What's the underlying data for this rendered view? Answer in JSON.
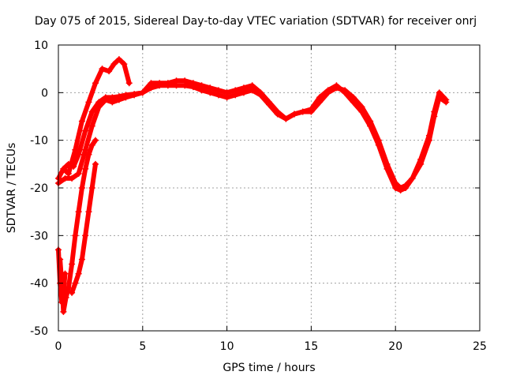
{
  "chart_data": {
    "type": "scatter",
    "title": "Day 075 of 2015, Sidereal Day-to-day VTEC variation (SDTVAR) for receiver onrj",
    "xlabel": "GPS time / hours",
    "ylabel": "SDTVAR / TECUs",
    "xlim": [
      0,
      25
    ],
    "ylim": [
      -50,
      10
    ],
    "xticks": [
      0,
      5,
      10,
      15,
      20,
      25
    ],
    "yticks": [
      -50,
      -40,
      -30,
      -20,
      -10,
      0,
      10
    ],
    "grid": true,
    "marker": "+",
    "series": [
      {
        "name": "track-a",
        "color": "#ff0000",
        "x": [
          0.0,
          0.3,
          0.6,
          0.9,
          1.2,
          1.6,
          2.0,
          2.4,
          2.8,
          3.2,
          3.6,
          4.0,
          4.5,
          5.0,
          5.5,
          6.0,
          6.5,
          7.0,
          7.5,
          8.0,
          8.5,
          9.0,
          9.5,
          10.0,
          10.5,
          11.0,
          11.5,
          12.0,
          12.5,
          13.0,
          13.5,
          14.0,
          14.5,
          15.0,
          15.5,
          16.0,
          16.5,
          17.0,
          17.5,
          18.0,
          18.5,
          19.0,
          19.5,
          20.0,
          20.3,
          20.6,
          21.0,
          21.5,
          22.0,
          22.3,
          22.6,
          23.0
        ],
        "y": [
          -18,
          -16,
          -15,
          -15.5,
          -13,
          -8,
          -4,
          -2,
          -1,
          -1,
          -0.8,
          -0.5,
          -0.3,
          0,
          2,
          2,
          2,
          2.5,
          2.5,
          2,
          1.5,
          1,
          0.5,
          0,
          0.5,
          1,
          1.5,
          0,
          -2,
          -4,
          -5.5,
          -4.5,
          -4,
          -4,
          -2,
          0,
          1,
          0.5,
          -1,
          -3,
          -6,
          -10,
          -15,
          -19,
          -20,
          -19.5,
          -18,
          -15,
          -10,
          -5,
          -1,
          -2
        ]
      },
      {
        "name": "track-b",
        "color": "#ff0000",
        "x": [
          0.0,
          0.4,
          0.8,
          1.2,
          1.6,
          2.0,
          2.4,
          2.8,
          3.2,
          3.6,
          4.0,
          4.5,
          5.0,
          5.5,
          6.0,
          6.5,
          7.0,
          7.5,
          8.0,
          8.5,
          9.0,
          9.5,
          10.0,
          10.5,
          11.0,
          11.5,
          12.0,
          12.5,
          13.0,
          13.5,
          14.0,
          14.5,
          15.0,
          15.5,
          16.0,
          16.5,
          17.0,
          17.5,
          18.0,
          18.5,
          19.0,
          19.5,
          20.0,
          20.3,
          20.6,
          21.0,
          21.5,
          22.0,
          22.3,
          22.6,
          23.0
        ],
        "y": [
          -19,
          -18,
          -18,
          -17,
          -12,
          -7,
          -3,
          -1.5,
          -2,
          -1.5,
          -1,
          -0.5,
          0,
          1,
          1.5,
          1.5,
          1.5,
          1.5,
          1.2,
          0.5,
          0,
          -0.5,
          -1,
          -0.5,
          0,
          0.5,
          -0.5,
          -2.5,
          -4.5,
          -5.5,
          -4.5,
          -4,
          -3.5,
          -1,
          0.5,
          1.5,
          0,
          -2,
          -4,
          -7,
          -11,
          -16,
          -20,
          -20.5,
          -20,
          -18,
          -14,
          -9,
          -4,
          0,
          -1.5
        ]
      },
      {
        "name": "track-c",
        "color": "#ff0000",
        "x": [
          0.3,
          0.6,
          1.0,
          1.4,
          1.8,
          2.2,
          2.6,
          3.0,
          3.3,
          3.6,
          3.9,
          4.2
        ],
        "y": [
          -16,
          -17,
          -12,
          -6,
          -2,
          2,
          5,
          4.5,
          6,
          7,
          6,
          2
        ]
      },
      {
        "name": "track-d",
        "color": "#ff0000",
        "x": [
          0.1,
          0.2,
          0.3,
          0.45,
          0.6,
          0.8,
          1.0,
          1.2,
          1.4,
          1.6,
          1.8,
          2.0,
          2.2
        ],
        "y": [
          -35,
          -40,
          -46,
          -43,
          -41,
          -36,
          -30,
          -25,
          -20,
          -16,
          -13,
          -11,
          -10
        ]
      },
      {
        "name": "track-e",
        "color": "#ff0000",
        "x": [
          0.0,
          0.1,
          0.2,
          0.3,
          0.4
        ],
        "y": [
          -33,
          -40,
          -44,
          -42,
          -38
        ]
      },
      {
        "name": "track-f",
        "color": "#ff0000",
        "x": [
          0.8,
          1.0,
          1.2,
          1.4,
          1.6,
          1.8,
          2.0,
          2.2
        ],
        "y": [
          -42,
          -40,
          -38,
          -35,
          -30,
          -25,
          -20,
          -15
        ]
      }
    ]
  }
}
